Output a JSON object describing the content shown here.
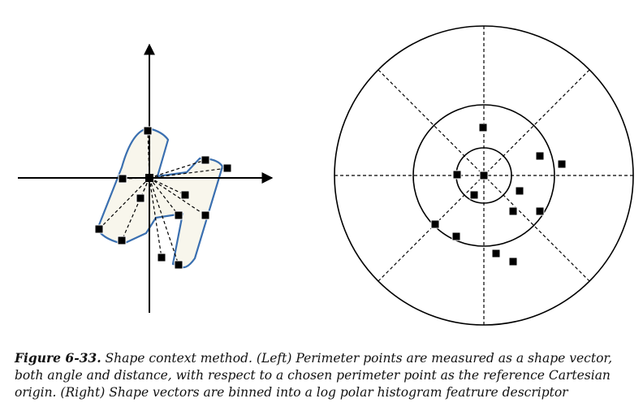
{
  "caption": {
    "label": "Figure 6-33.",
    "text": "Shape context method. (Left) Perimeter points are measured as a shape vector, both angle and distance, with respect to a chosen perimeter point as the reference Cartesian origin. (Right) Shape vectors are binned into a log polar histogram featrure descriptor"
  },
  "colors": {
    "shape_outline": "#3a6fb0",
    "shape_fill": "#f8f6ec",
    "ink": "#000000"
  }
}
